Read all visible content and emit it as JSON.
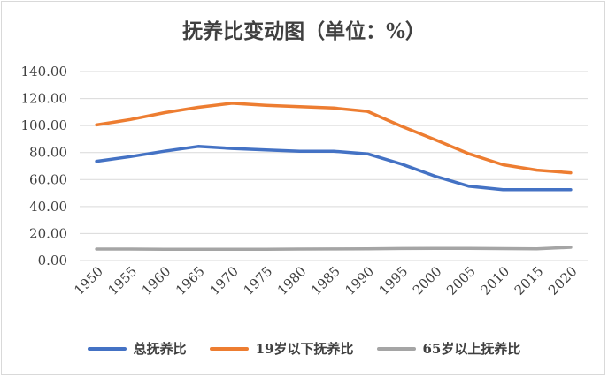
{
  "chart_data": {
    "type": "line",
    "title": "抚养比变动图（单位：%）",
    "x": [
      "1950",
      "1955",
      "1960",
      "1965",
      "1970",
      "1975",
      "1980",
      "1985",
      "1990",
      "1995",
      "2000",
      "2005",
      "2010",
      "2015",
      "2020"
    ],
    "ylim": [
      0,
      140
    ],
    "yticks": [
      "0.00",
      "20.00",
      "40.00",
      "60.00",
      "80.00",
      "100.00",
      "120.00",
      "140.00"
    ],
    "grid": true,
    "legend_position": "bottom",
    "series": [
      {
        "name": "总抚养比",
        "color": "#4472c4",
        "values": [
          73.5,
          77.0,
          81.0,
          84.5,
          83.0,
          82.0,
          81.0,
          81.0,
          79.0,
          71.5,
          62.5,
          55.0,
          52.5,
          52.5,
          52.5
        ]
      },
      {
        "name": "19岁以下抚养比",
        "color": "#ed7d31",
        "values": [
          100.5,
          104.5,
          109.5,
          113.5,
          116.5,
          115.0,
          114.0,
          113.0,
          110.5,
          99.5,
          89.5,
          79.0,
          71.0,
          67.0,
          65.0
        ]
      },
      {
        "name": "65岁以上抚养比",
        "color": "#a5a5a5",
        "values": [
          8.5,
          8.5,
          8.3,
          8.4,
          8.4,
          8.3,
          8.5,
          8.6,
          8.7,
          8.9,
          9.0,
          9.0,
          8.8,
          8.7,
          9.8
        ]
      }
    ]
  }
}
